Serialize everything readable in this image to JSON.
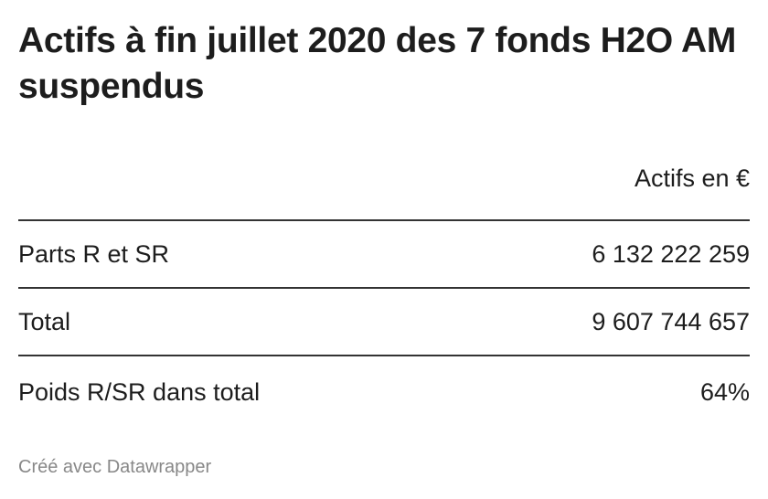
{
  "chart_data": {
    "type": "table",
    "title": "Actifs à fin juillet 2020 des 7 fonds H2O AM suspendus",
    "columns": [
      "",
      "Actifs en €"
    ],
    "rows": [
      {
        "label": "Parts R et SR",
        "value": "6 132 222 259"
      },
      {
        "label": "Total",
        "value": "9 607 744 657"
      },
      {
        "label": "Poids R/SR dans total",
        "value": "64%"
      }
    ],
    "credit": "Créé avec Datawrapper"
  }
}
